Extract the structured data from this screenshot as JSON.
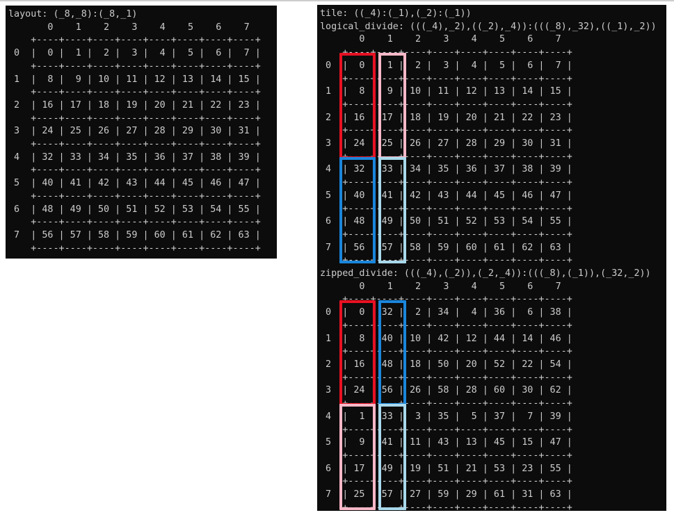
{
  "window": {
    "background": "#ffffff",
    "top_border_color": "#cdcdcd"
  },
  "terminal": {
    "background": "#0c0c0c",
    "text_color": "#cccccc"
  },
  "highlight_colors": {
    "red": "#e81123",
    "pink": "#f8b8c8",
    "blue": "#1a86dc",
    "light_blue": "#a9d9ec"
  },
  "layout_panel": {
    "grids": [
      {
        "titles": [
          "layout: (_8,_8):(_8,_1)"
        ],
        "col_headers": [
          0,
          1,
          2,
          3,
          4,
          5,
          6,
          7
        ],
        "row_headers": [
          0,
          1,
          2,
          3,
          4,
          5,
          6,
          7
        ],
        "rows": [
          [
            0,
            1,
            2,
            3,
            4,
            5,
            6,
            7
          ],
          [
            8,
            9,
            10,
            11,
            12,
            13,
            14,
            15
          ],
          [
            16,
            17,
            18,
            19,
            20,
            21,
            22,
            23
          ],
          [
            24,
            25,
            26,
            27,
            28,
            29,
            30,
            31
          ],
          [
            32,
            33,
            34,
            35,
            36,
            37,
            38,
            39
          ],
          [
            40,
            41,
            42,
            43,
            44,
            45,
            46,
            47
          ],
          [
            48,
            49,
            50,
            51,
            52,
            53,
            54,
            55
          ],
          [
            56,
            57,
            58,
            59,
            60,
            61,
            62,
            63
          ]
        ],
        "highlights": []
      }
    ]
  },
  "divide_panel": {
    "grids": [
      {
        "titles": [
          "tile: ((_4):(_1),(_2):(_1))",
          "logical_divide: (((_4),_2),((_2),_4)):(((_8),_32),((_1),_2))"
        ],
        "col_headers": [
          0,
          1,
          2,
          3,
          4,
          5,
          6,
          7
        ],
        "row_headers": [
          0,
          1,
          2,
          3,
          4,
          5,
          6,
          7
        ],
        "rows": [
          [
            0,
            1,
            2,
            3,
            4,
            5,
            6,
            7
          ],
          [
            8,
            9,
            10,
            11,
            12,
            13,
            14,
            15
          ],
          [
            16,
            17,
            18,
            19,
            20,
            21,
            22,
            23
          ],
          [
            24,
            25,
            26,
            27,
            28,
            29,
            30,
            31
          ],
          [
            32,
            33,
            34,
            35,
            36,
            37,
            38,
            39
          ],
          [
            40,
            41,
            42,
            43,
            44,
            45,
            46,
            47
          ],
          [
            48,
            49,
            50,
            51,
            52,
            53,
            54,
            55
          ],
          [
            56,
            57,
            58,
            59,
            60,
            61,
            62,
            63
          ]
        ],
        "highlights": [
          {
            "name": "logical-divide-tile-red",
            "col": 0,
            "row_start": 0,
            "row_end": 3,
            "color": "red"
          },
          {
            "name": "logical-divide-tile-pink",
            "col": 1,
            "row_start": 0,
            "row_end": 3,
            "color": "pink"
          },
          {
            "name": "logical-divide-tile-blue",
            "col": 0,
            "row_start": 4,
            "row_end": 7,
            "color": "blue"
          },
          {
            "name": "logical-divide-tile-lightblue",
            "col": 1,
            "row_start": 4,
            "row_end": 7,
            "color": "light_blue"
          }
        ]
      },
      {
        "titles": [
          "zipped_divide: (((_4),(_2)),(_2,_4)):(((_8),(_1)),(_32,_2))"
        ],
        "col_headers": [
          0,
          1,
          2,
          3,
          4,
          5,
          6,
          7
        ],
        "row_headers": [
          0,
          1,
          2,
          3,
          4,
          5,
          6,
          7
        ],
        "rows": [
          [
            0,
            32,
            2,
            34,
            4,
            36,
            6,
            38
          ],
          [
            8,
            40,
            10,
            42,
            12,
            44,
            14,
            46
          ],
          [
            16,
            48,
            18,
            50,
            20,
            52,
            22,
            54
          ],
          [
            24,
            56,
            26,
            58,
            28,
            60,
            30,
            62
          ],
          [
            1,
            33,
            3,
            35,
            5,
            37,
            7,
            39
          ],
          [
            9,
            41,
            11,
            43,
            13,
            45,
            15,
            47
          ],
          [
            17,
            49,
            19,
            51,
            21,
            53,
            23,
            55
          ],
          [
            25,
            57,
            27,
            59,
            29,
            61,
            31,
            63
          ]
        ],
        "highlights": [
          {
            "name": "zipped-divide-tile-red",
            "col": 0,
            "row_start": 0,
            "row_end": 3,
            "color": "red"
          },
          {
            "name": "zipped-divide-tile-blue",
            "col": 1,
            "row_start": 0,
            "row_end": 3,
            "color": "blue"
          },
          {
            "name": "zipped-divide-tile-pink",
            "col": 0,
            "row_start": 4,
            "row_end": 7,
            "color": "pink"
          },
          {
            "name": "zipped-divide-tile-lightblue",
            "col": 1,
            "row_start": 4,
            "row_end": 7,
            "color": "light_blue"
          }
        ]
      }
    ]
  }
}
